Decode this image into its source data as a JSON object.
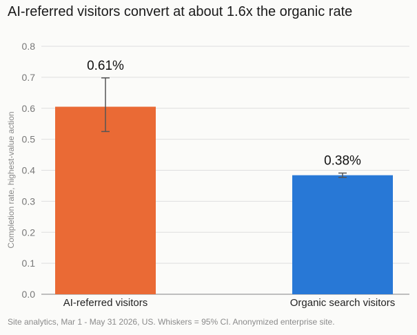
{
  "title": "AI-referred visitors convert at about 1.6x the organic rate",
  "note": "Site analytics, Mar 1 - May 31 2026, US. Whiskers = 95% CI. Anonymized enterprise site.",
  "chart_data": {
    "type": "bar",
    "title": "AI-referred visitors convert at about 1.6x the organic rate",
    "ylabel": "Completion rate, highest-value action",
    "xlabel": "",
    "ylim": [
      0,
      0.8
    ],
    "yticks": [
      "0.0",
      "0.1",
      "0.2",
      "0.3",
      "0.4",
      "0.5",
      "0.6",
      "0.7",
      "0.8"
    ],
    "grid": true,
    "categories": [
      "AI-referred visitors",
      "Organic search visitors"
    ],
    "values": [
      0.605,
      0.384
    ],
    "data_labels": [
      "0.61%",
      "0.38%"
    ],
    "error_low": [
      0.525,
      0.377
    ],
    "error_high": [
      0.698,
      0.391
    ],
    "colors": [
      "#ea6a35",
      "#2878d6"
    ]
  }
}
